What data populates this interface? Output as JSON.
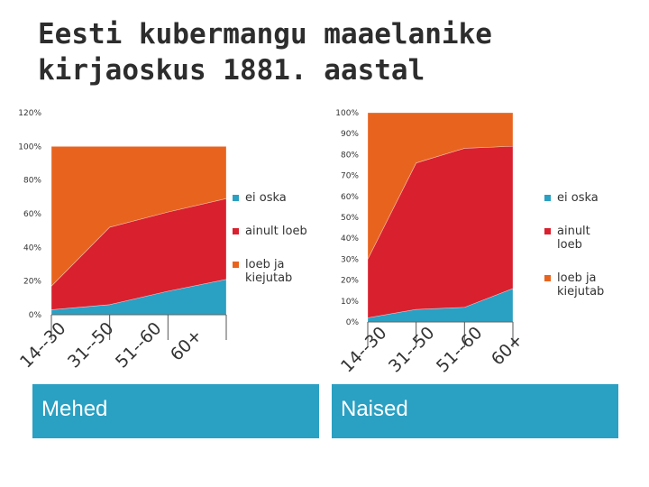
{
  "title_line1": "Eesti kubermangu maaelanike",
  "title_line2": "kirjaoskus 1881. aastal",
  "colors": {
    "ei_oska": "#2aa0c3",
    "ainult_loeb": "#d9202e",
    "loeb_ja_kiejutab": "#e8641e"
  },
  "chart_data": [
    {
      "type": "area",
      "stacked": true,
      "caption": "Mehed",
      "categories": [
        "14--30",
        "31--50",
        "51--60",
        "60+"
      ],
      "yticks": [
        "0%",
        "20%",
        "40%",
        "60%",
        "80%",
        "100%",
        "120%"
      ],
      "ylim": [
        0,
        120
      ],
      "legend_position": "right",
      "series": [
        {
          "name": "ei oska",
          "values": [
            3,
            6,
            14,
            21
          ]
        },
        {
          "name": "ainult loeb",
          "values": [
            14,
            46,
            47,
            48
          ]
        },
        {
          "name": "loeb ja kiejutab",
          "values": [
            83,
            48,
            39,
            31
          ]
        }
      ]
    },
    {
      "type": "area",
      "stacked": true,
      "caption": "Naised",
      "categories": [
        "14--30",
        "31--50",
        "51--60",
        "60+"
      ],
      "yticks": [
        "0%",
        "10%",
        "20%",
        "30%",
        "40%",
        "50%",
        "60%",
        "70%",
        "80%",
        "90%",
        "100%"
      ],
      "ylim": [
        0,
        100
      ],
      "legend_position": "right",
      "series": [
        {
          "name": "ei oska",
          "values": [
            2,
            6,
            7,
            16
          ]
        },
        {
          "name": "ainult loeb",
          "values": [
            28,
            70,
            76,
            68
          ]
        },
        {
          "name": "loeb ja kiejutab",
          "values": [
            70,
            24,
            17,
            16
          ]
        }
      ]
    }
  ]
}
